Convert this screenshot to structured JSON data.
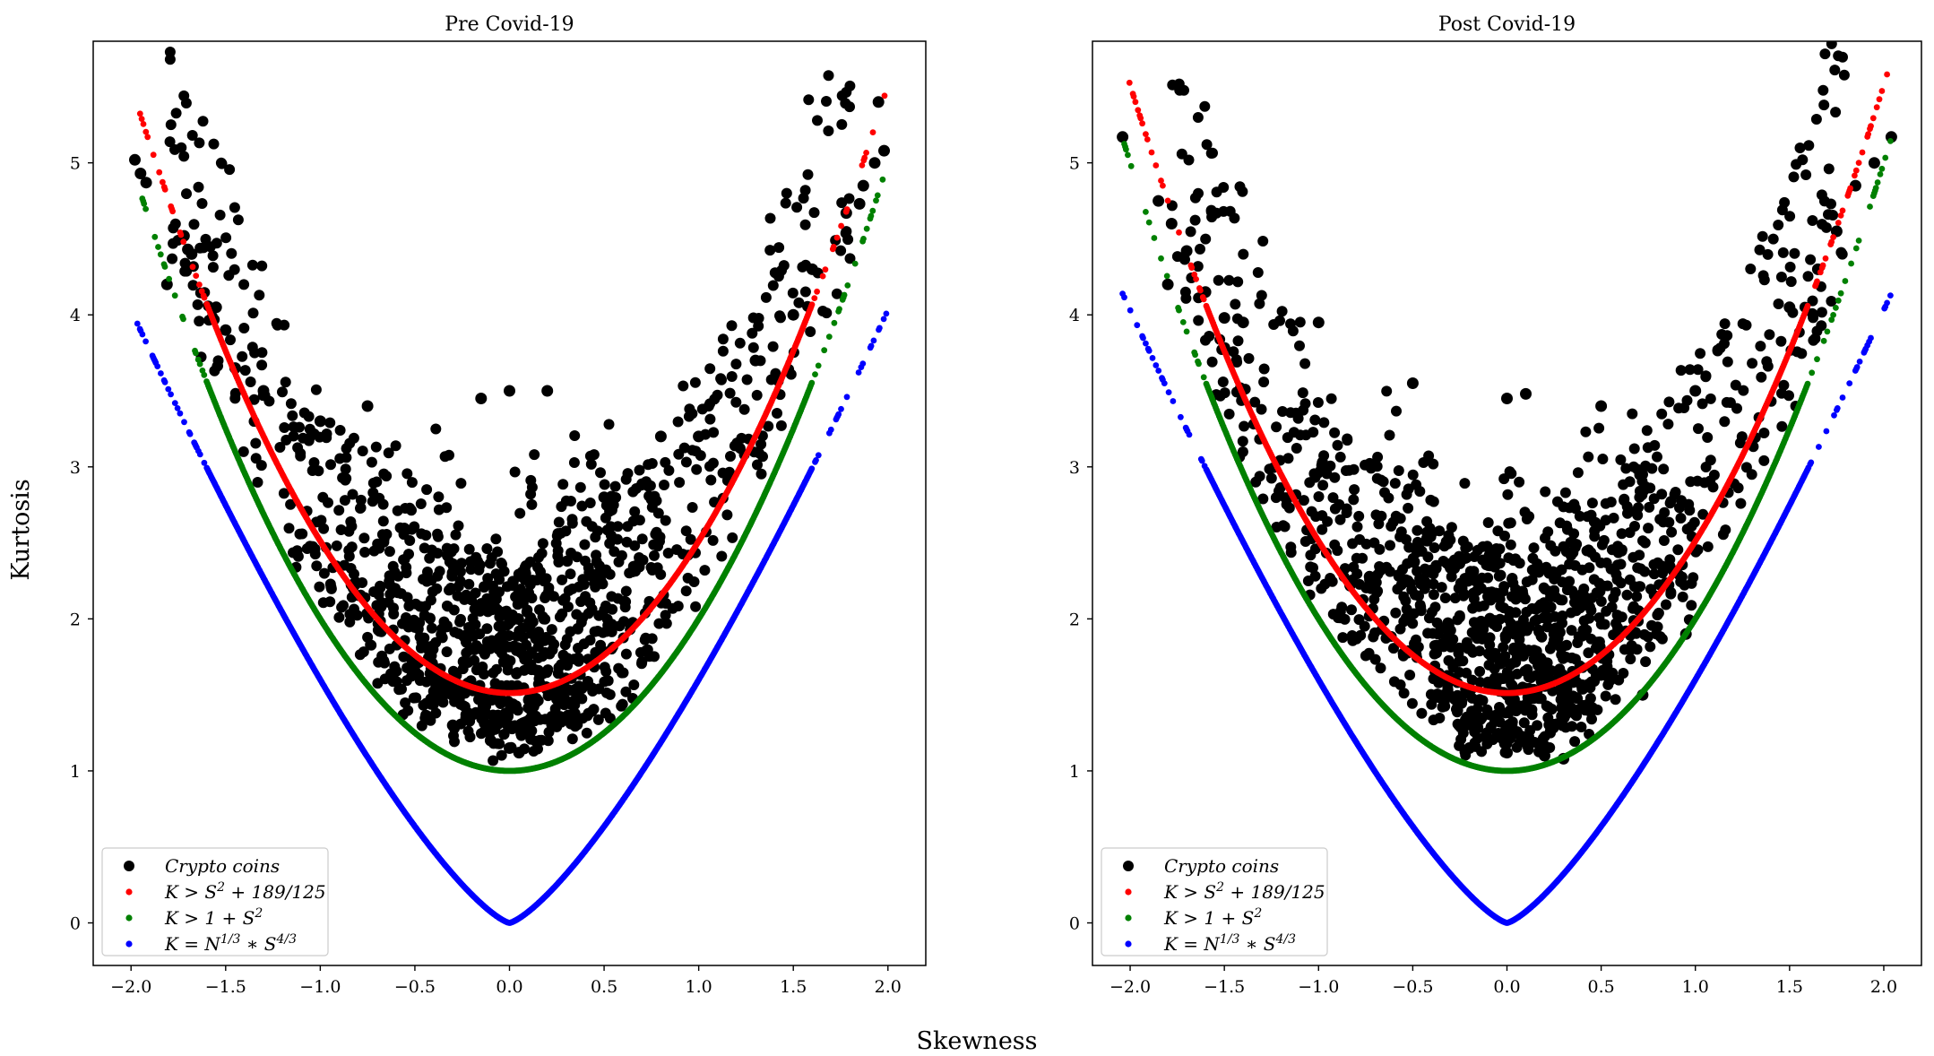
{
  "figure": {
    "ylabel": "Kurtosis",
    "xlabel": "Skewness"
  },
  "colors": {
    "coins": "#000000",
    "red_curve": "#ff0000",
    "green_curve": "#008000",
    "blue_curve": "#0000ff"
  },
  "chart_data": [
    {
      "type": "scatter",
      "title": "Pre Covid-19",
      "xlim": [
        -2.2,
        2.2
      ],
      "ylim": [
        -0.28,
        5.8
      ],
      "xticks": [
        -2.0,
        -1.5,
        -1.0,
        -0.5,
        0.0,
        0.5,
        1.0,
        1.5,
        2.0
      ],
      "xtick_labels": [
        "−2.0",
        "−1.5",
        "−1.0",
        "−0.5",
        "0.0",
        "0.5",
        "1.0",
        "1.5",
        "2.0"
      ],
      "yticks": [
        0,
        1,
        2,
        3,
        4,
        5
      ],
      "ytick_labels": [
        "0",
        "1",
        "2",
        "3",
        "4",
        "5"
      ],
      "legend_position": "lower-left",
      "series": [
        {
          "name": "Crypto coins",
          "kind": "scatter",
          "color": "#000000",
          "approx_count": 1200,
          "points": [
            [
              -1.98,
              5.02
            ],
            [
              -1.95,
              4.93
            ],
            [
              -1.92,
              4.87
            ],
            [
              -1.72,
              4.52
            ],
            [
              -1.7,
              4.43
            ],
            [
              -1.68,
              4.4
            ],
            [
              -1.81,
              4.2
            ],
            [
              -1.55,
              4.05
            ],
            [
              -1.5,
              3.9
            ],
            [
              -1.45,
              3.65
            ],
            [
              -1.3,
              3.5
            ],
            [
              -1.0,
              3.3
            ],
            [
              -0.75,
              3.4
            ],
            [
              -0.15,
              3.45
            ],
            [
              0.0,
              3.5
            ],
            [
              0.2,
              3.5
            ],
            [
              1.95,
              5.4
            ],
            [
              1.98,
              5.08
            ],
            [
              1.93,
              5.0
            ],
            [
              1.87,
              4.85
            ],
            [
              1.85,
              4.73
            ],
            [
              1.78,
              4.67
            ],
            [
              1.6,
              4.3
            ],
            [
              1.5,
              4.0
            ],
            [
              1.3,
              3.7
            ],
            [
              1.0,
              3.2
            ],
            [
              0.8,
              3.2
            ],
            [
              0.5,
              2.8
            ],
            [
              0.0,
              2.0
            ],
            [
              0.0,
              1.15
            ],
            [
              0.05,
              1.12
            ],
            [
              -0.1,
              1.2
            ],
            [
              0.3,
              1.35
            ],
            [
              -0.3,
              1.3
            ]
          ],
          "distribution": "dense cloud lying above K = 1 + S^2, mostly between K = S^2 + 189/125 and about 1.5 units above it, densest near S = 0, K = 1.7"
        },
        {
          "name": "K > S^2 + 189/125",
          "kind": "curve",
          "formula": "S^2 + 189/125",
          "color": "#ff0000",
          "x_range": [
            -1.97,
            2.0
          ]
        },
        {
          "name": "K > 1 + S^2",
          "kind": "curve",
          "formula": "1 + S^2",
          "color": "#008000",
          "x_range": [
            -1.98,
            1.99
          ]
        },
        {
          "name": "K = N^1/3 * S^4/3",
          "kind": "curve",
          "formula": "1.6 * |S|^(4/3)",
          "color": "#0000ff",
          "x_range": [
            -1.98,
            2.0
          ]
        }
      ]
    },
    {
      "type": "scatter",
      "title": "Post Covid-19",
      "xlim": [
        -2.2,
        2.2
      ],
      "ylim": [
        -0.28,
        5.8
      ],
      "xticks": [
        -2.0,
        -1.5,
        -1.0,
        -0.5,
        0.0,
        0.5,
        1.0,
        1.5,
        2.0
      ],
      "xtick_labels": [
        "−2.0",
        "−1.5",
        "−1.0",
        "−0.5",
        "0.0",
        "0.5",
        "1.0",
        "1.5",
        "2.0"
      ],
      "yticks": [
        0,
        1,
        2,
        3,
        4,
        5
      ],
      "ytick_labels": [
        "0",
        "1",
        "2",
        "3",
        "4",
        "5"
      ],
      "legend_position": "lower-left",
      "series": [
        {
          "name": "Crypto coins",
          "kind": "scatter",
          "color": "#000000",
          "approx_count": 1300,
          "points": [
            [
              -2.04,
              5.17
            ],
            [
              -1.85,
              4.75
            ],
            [
              -1.78,
              4.6
            ],
            [
              -1.7,
              4.42
            ],
            [
              -1.8,
              4.2
            ],
            [
              -1.6,
              4.15
            ],
            [
              -1.5,
              3.98
            ],
            [
              -1.4,
              3.95
            ],
            [
              -1.0,
              3.95
            ],
            [
              -0.5,
              3.55
            ],
            [
              0.1,
              3.48
            ],
            [
              0.0,
              3.45
            ],
            [
              0.5,
              3.4
            ],
            [
              1.0,
              3.5
            ],
            [
              1.5,
              4.05
            ],
            [
              1.65,
              4.3
            ],
            [
              1.75,
              4.55
            ],
            [
              1.85,
              4.85
            ],
            [
              1.95,
              5.0
            ],
            [
              2.04,
              5.17
            ],
            [
              0.0,
              1.12
            ],
            [
              0.2,
              1.1
            ],
            [
              0.3,
              1.08
            ],
            [
              -0.2,
              1.15
            ],
            [
              0.72,
              1.5
            ],
            [
              0.95,
              1.9
            ]
          ],
          "distribution": "dense cloud lying above K = 1 + S^2, mostly between K = S^2 + 189/125 and about 1.5 units above it, densest near S = 0, K = 1.8"
        },
        {
          "name": "K > S^2 + 189/125",
          "kind": "curve",
          "formula": "S^2 + 189/125",
          "color": "#ff0000",
          "x_range": [
            -2.04,
            2.04
          ]
        },
        {
          "name": "K > 1 + S^2",
          "kind": "curve",
          "formula": "1 + S^2",
          "color": "#008000",
          "x_range": [
            -2.04,
            2.04
          ]
        },
        {
          "name": "K = N^1/3 * S^4/3",
          "kind": "curve",
          "formula": "1.6 * |S|^(4/3)",
          "color": "#0000ff",
          "x_range": [
            -2.04,
            2.04
          ]
        }
      ]
    }
  ]
}
